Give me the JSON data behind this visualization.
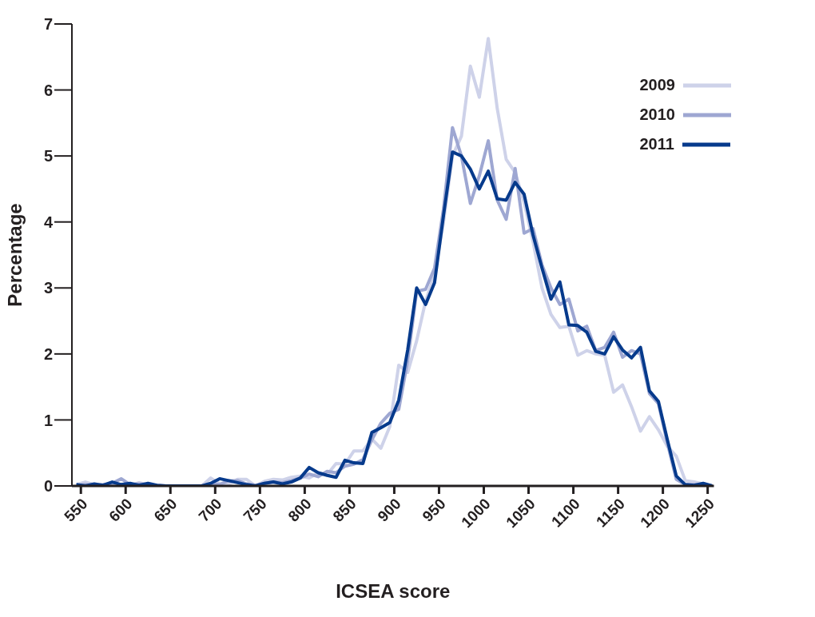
{
  "chart_data": {
    "type": "line",
    "xlabel": "ICSEA score",
    "ylabel": "Percentage",
    "x": [
      545,
      555,
      565,
      575,
      585,
      595,
      605,
      615,
      625,
      635,
      645,
      655,
      665,
      675,
      685,
      695,
      705,
      715,
      725,
      735,
      745,
      755,
      765,
      775,
      785,
      795,
      805,
      815,
      825,
      835,
      845,
      855,
      865,
      875,
      885,
      895,
      905,
      915,
      925,
      935,
      945,
      955,
      965,
      975,
      985,
      995,
      1005,
      1015,
      1025,
      1035,
      1045,
      1055,
      1065,
      1075,
      1085,
      1095,
      1105,
      1115,
      1125,
      1135,
      1145,
      1155,
      1165,
      1175,
      1185,
      1195,
      1205,
      1215,
      1225,
      1235,
      1245,
      1255
    ],
    "series": [
      {
        "name": "2009",
        "color": "#ced2e9",
        "values": [
          0.02,
          0.06,
          0.02,
          0,
          0.01,
          0.02,
          0.01,
          0.05,
          0.02,
          0,
          0,
          0,
          0,
          0,
          0,
          0.12,
          0.03,
          0.03,
          0.1,
          0.1,
          0,
          0.07,
          0.1,
          0.09,
          0.13,
          0.15,
          0.12,
          0.2,
          0.17,
          0.34,
          0.33,
          0.53,
          0.53,
          0.71,
          0.57,
          0.9,
          1.83,
          1.72,
          2.2,
          2.8,
          3.2,
          4.0,
          5.0,
          5.3,
          6.36,
          5.89,
          6.78,
          5.72,
          4.95,
          4.75,
          4.3,
          3.7,
          3.0,
          2.6,
          2.4,
          2.42,
          1.98,
          2.05,
          2.0,
          1.98,
          1.42,
          1.53,
          1.2,
          0.83,
          1.05,
          0.85,
          0.6,
          0.45,
          0.08,
          0.06,
          0.03,
          0.0
        ]
      },
      {
        "name": "2010",
        "color": "#9ea7d2",
        "values": [
          0.01,
          0.02,
          0.01,
          0.02,
          0.04,
          0.11,
          0.02,
          0.03,
          0.02,
          0.01,
          0,
          0,
          0,
          0,
          0,
          0.03,
          0.02,
          0.08,
          0.08,
          0.03,
          0.01,
          0.04,
          0.06,
          0.05,
          0.08,
          0.12,
          0.18,
          0.14,
          0.22,
          0.2,
          0.3,
          0.33,
          0.4,
          0.7,
          0.95,
          1.1,
          1.16,
          1.9,
          2.95,
          2.98,
          3.3,
          4.2,
          5.43,
          5.0,
          4.28,
          4.7,
          5.23,
          4.33,
          4.04,
          4.81,
          3.83,
          3.9,
          3.35,
          3.0,
          2.75,
          2.83,
          2.35,
          2.42,
          2.05,
          2.1,
          2.33,
          1.95,
          2.05,
          2.0,
          1.4,
          1.25,
          0.65,
          0.1,
          0.02,
          0.02,
          0.02,
          0.0
        ]
      },
      {
        "name": "2011",
        "color": "#063a8c",
        "values": [
          0.02,
          0.0,
          0.03,
          0.01,
          0.06,
          0.02,
          0.04,
          0.01,
          0.04,
          0.01,
          0,
          0,
          0,
          0,
          0,
          0.04,
          0.11,
          0.08,
          0.05,
          0.02,
          0,
          0.04,
          0.06,
          0.03,
          0.06,
          0.12,
          0.28,
          0.2,
          0.16,
          0.13,
          0.39,
          0.35,
          0.34,
          0.81,
          0.88,
          0.96,
          1.3,
          2.06,
          3.0,
          2.75,
          3.08,
          4.1,
          5.06,
          5.0,
          4.8,
          4.5,
          4.77,
          4.35,
          4.33,
          4.6,
          4.42,
          3.8,
          3.3,
          2.83,
          3.09,
          2.44,
          2.43,
          2.33,
          2.04,
          2.0,
          2.26,
          2.06,
          1.94,
          2.1,
          1.44,
          1.28,
          0.7,
          0.15,
          0.02,
          0.01,
          0.04,
          0.0
        ]
      }
    ],
    "xlim": [
      540,
      1257
    ],
    "xticks": [
      550,
      600,
      650,
      700,
      750,
      800,
      850,
      900,
      950,
      1000,
      1050,
      1100,
      1150,
      1200,
      1250
    ],
    "ylim": [
      0,
      7
    ],
    "yticks": [
      0,
      1,
      2,
      3,
      4,
      5,
      6,
      7
    ],
    "grid": false,
    "legend": "top right",
    "marker": "none",
    "line_style": "solid"
  }
}
